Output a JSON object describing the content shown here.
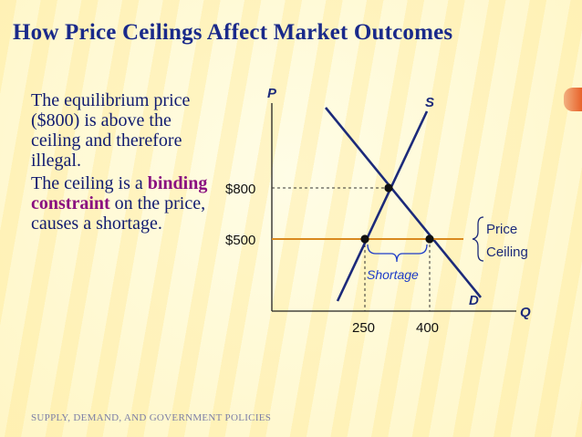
{
  "title": "How Price Ceilings Affect Market Outcomes",
  "text": {
    "p1": "The equilibrium price ($800) is above the ceiling and therefore illegal.",
    "p2_pre": "The ceiling is a",
    "p2_hl": "binding constraint",
    "p2_post": "on the price, causes a shortage."
  },
  "footer": "SUPPLY, DEMAND, AND GOVERNMENT POLICIES",
  "diagram": {
    "axis_p": "P",
    "axis_q": "Q",
    "supply_label": "S",
    "demand_label": "D",
    "price_equilibrium": "$800",
    "price_ceiling": "$500",
    "qty_supplied": "250",
    "qty_demanded": "400",
    "ceiling_label_1": "Price",
    "ceiling_label_2": "Ceiling",
    "shortage_label": "Shortage"
  },
  "colors": {
    "title": "#1a2a8a",
    "text": "#111c70",
    "highlight": "#8a1080",
    "ceiling_line": "#d9891f",
    "curves": "#1c2a7a",
    "shortage": "#1c3cc8"
  }
}
